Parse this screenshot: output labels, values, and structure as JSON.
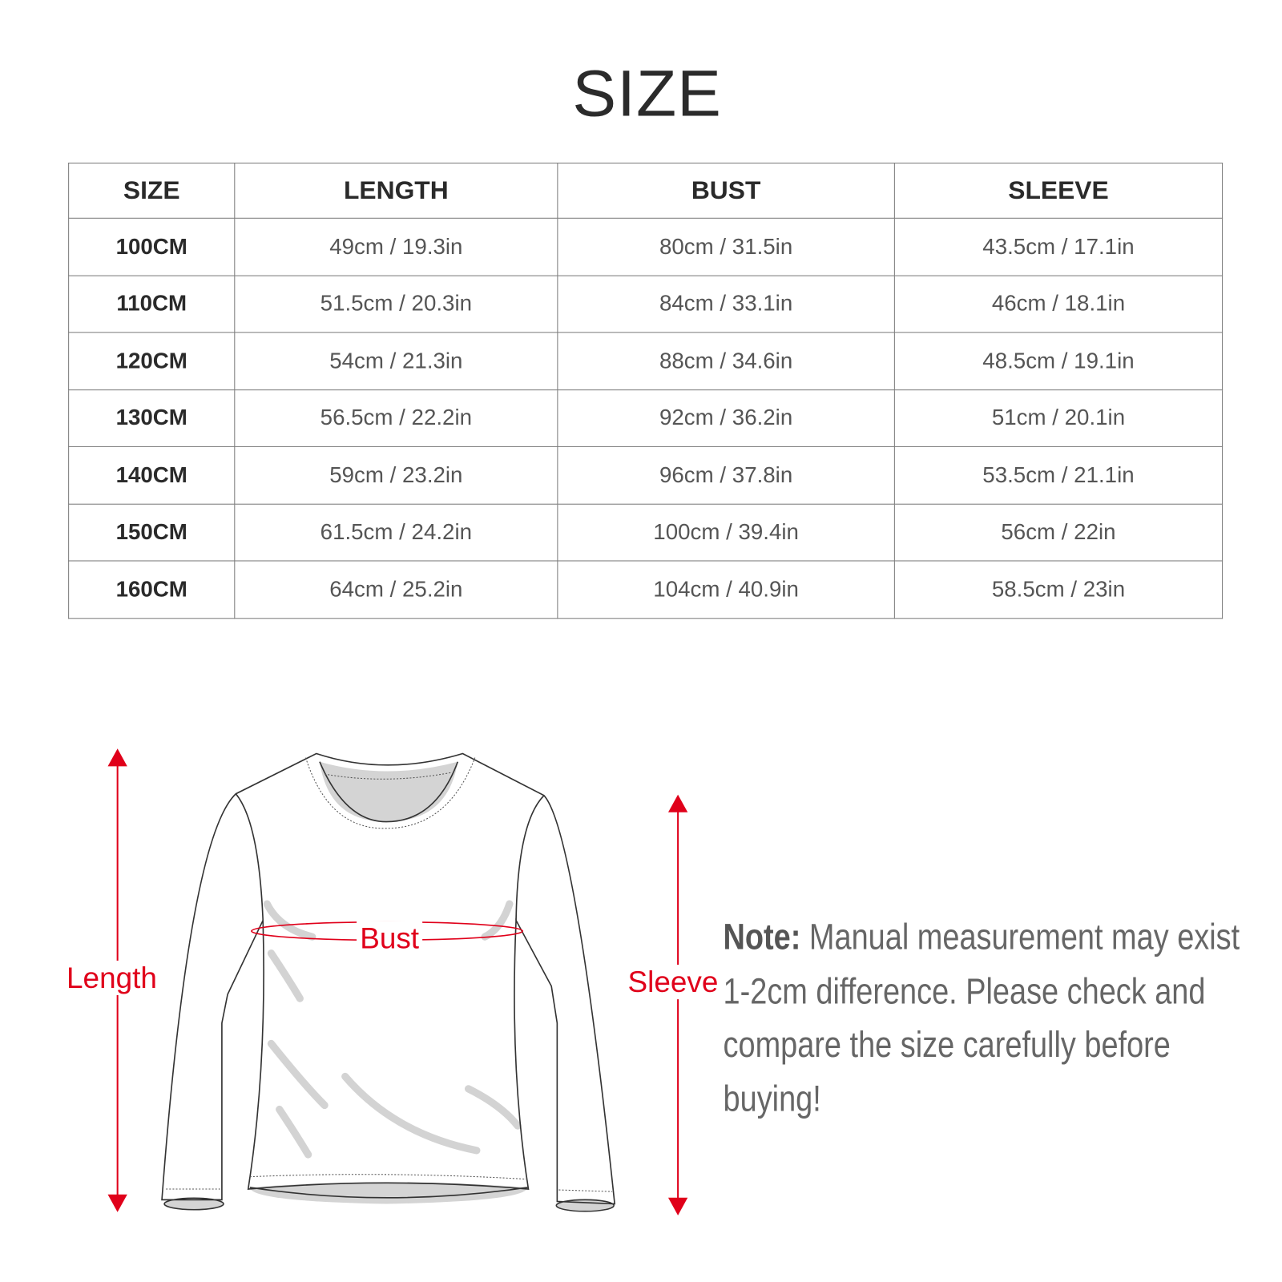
{
  "title": "SIZE",
  "table": {
    "headers": [
      "SIZE",
      "LENGTH",
      "BUST",
      "SLEEVE"
    ],
    "rows": [
      [
        "100CM",
        "49cm / 19.3in",
        "80cm / 31.5in",
        "43.5cm / 17.1in"
      ],
      [
        "110CM",
        "51.5cm / 20.3in",
        "84cm / 33.1in",
        "46cm / 18.1in"
      ],
      [
        "120CM",
        "54cm / 21.3in",
        "88cm / 34.6in",
        "48.5cm / 19.1in"
      ],
      [
        "130CM",
        "56.5cm / 22.2in",
        "92cm / 36.2in",
        "51cm / 20.1in"
      ],
      [
        "140CM",
        "59cm / 23.2in",
        "96cm / 37.8in",
        "53.5cm / 21.1in"
      ],
      [
        "150CM",
        "61.5cm / 24.2in",
        "100cm / 39.4in",
        "56cm / 22in"
      ],
      [
        "160CM",
        "64cm / 25.2in",
        "104cm / 40.9in",
        "58.5cm / 23in"
      ]
    ]
  },
  "diagram": {
    "length_label": "Length",
    "bust_label": "Bust",
    "sleeve_label": "Sleeve",
    "accent_color": "#e0001a"
  },
  "note": {
    "label": "Note:",
    "text": " Manual measurement may exist 1-2cm difference. Please check and compare the size carefully before buying!"
  }
}
